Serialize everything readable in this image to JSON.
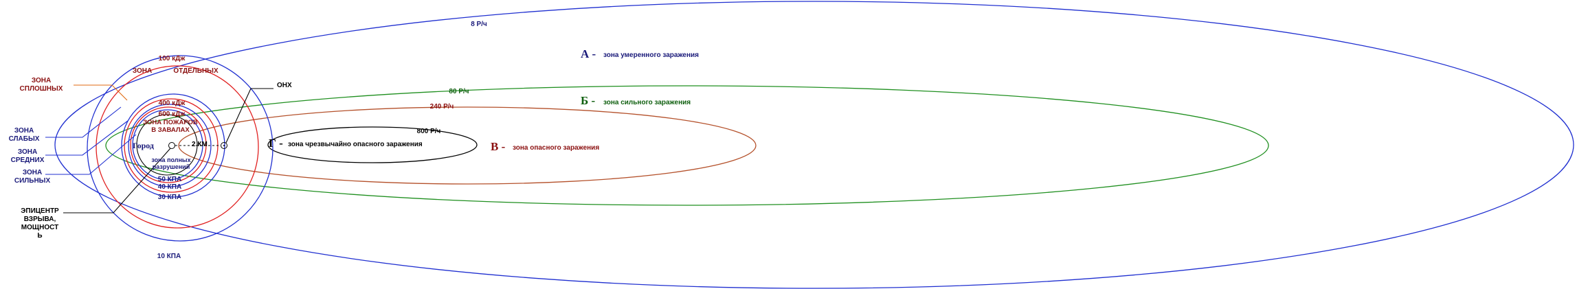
{
  "colors": {
    "blue": "#1f2fd0",
    "red": "#e01f1f",
    "green": "#1f8f1f",
    "brown": "#b4502a",
    "black": "#000000",
    "navy": "#1a1a7a",
    "darkred": "#8b1010",
    "darkgreen": "#0f5f0f",
    "orange": "#e06a10"
  },
  "plume_labels": {
    "a": "8 Р/ч",
    "b": "80 Р/ч",
    "v": "240 Р/ч",
    "g": "800 Р/ч"
  },
  "zones": {
    "a": {
      "letter": "А -",
      "text": "зона умеренного заражения"
    },
    "b": {
      "letter": "Б -",
      "text": "зона сильного заражения"
    },
    "v": {
      "letter": "В -",
      "text": "зона опасного заражения"
    },
    "g": {
      "letter": "Г -",
      "text": "зона чрезвычайно опасного заражения"
    }
  },
  "circle_labels": {
    "heat_100": "100 кДж",
    "heat_400": "400 кДж",
    "heat_600": "600 кДж",
    "kpa_50": "50 КПА",
    "kpa_40": "40 КПА",
    "kpa_30": "30 КПА",
    "kpa_10": "10 КПА"
  },
  "fire_zones": {
    "separate_1": "ЗОНА",
    "separate_2": "ОТДЕЛЬНЫХ",
    "continuous_1": "ЗОНА",
    "continuous_2": "СПЛОШНЫХ",
    "blockage_1": "ЗОНА ПОЖАРОВ",
    "blockage_2": "В ЗАВАЛАХ"
  },
  "destruction_zones": {
    "weak_1": "ЗОНА",
    "weak_2": "СЛАБЫХ",
    "medium_1": "ЗОНА",
    "medium_2": "СРЕДНИХ",
    "strong_1": "ЗОНА",
    "strong_2": "СИЛЬНЫХ",
    "full_1": "зона полных",
    "full_2": "разрушений"
  },
  "epicenter": {
    "line1": "ЭПИЦЕНТР",
    "line2": "ВЗРЫВА,",
    "line3": "МОЩНОСТ",
    "line4": "Ь"
  },
  "onkh": "ОНХ",
  "city": "Город",
  "distance": "2 КМ"
}
